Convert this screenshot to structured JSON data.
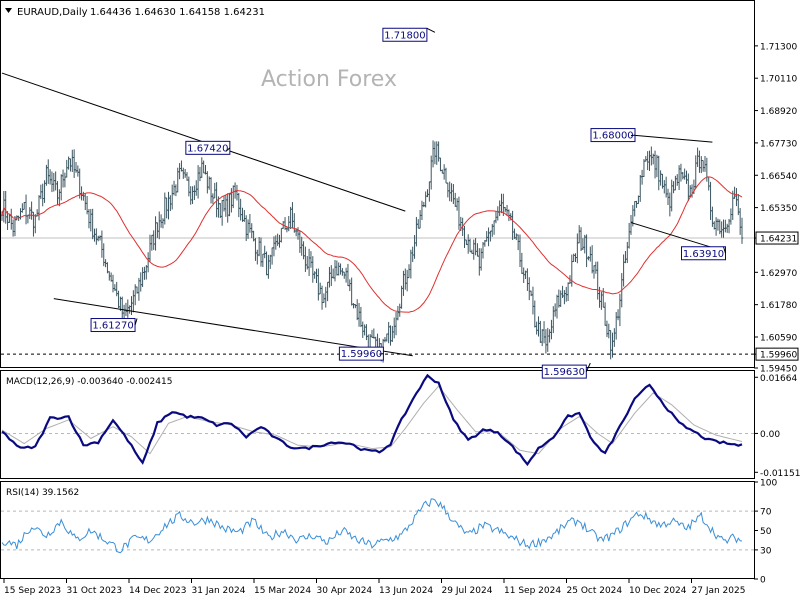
{
  "header": {
    "symbol": "EURAUD,Daily",
    "ohlc": "1.64436 1.64630 1.64158 1.64231"
  },
  "watermark": "Action Forex",
  "colors": {
    "price_bars": "#3b5560",
    "moving_average": "#e03030",
    "macd_line": "#0a0a80",
    "macd_signal": "#b0b0b0",
    "rsi_line": "#3a8fd8",
    "trendline": "#000000",
    "label_border": "#0a0a80",
    "background": "#ffffff"
  },
  "chart_data": [
    {
      "type": "ohlc",
      "panel": "price",
      "instrument": "EURAUD",
      "timeframe": "Daily",
      "ylim": [
        1.5945,
        1.7295
      ],
      "yticks": [
        "1.71300",
        "1.70110",
        "1.68920",
        "1.67730",
        "1.66540",
        "1.65350",
        "1.64231",
        "1.62970",
        "1.61780",
        "1.60590",
        "1.59960",
        "1.59450"
      ],
      "last_price": 1.64231,
      "support_line": 1.5996,
      "xticks": [
        "15 Sep 2023",
        "31 Oct 2023",
        "14 Dec 2023",
        "31 Jan 2024",
        "15 Mar 2024",
        "30 Apr 2024",
        "13 Jun 2024",
        "29 Jul 2024",
        "11 Sep 2024",
        "25 Oct 2024",
        "10 Dec 2024",
        "27 Jan 2025"
      ],
      "close_path": [
        [
          0,
          1.6545
        ],
        [
          6,
          1.646
        ],
        [
          12,
          1.653
        ],
        [
          18,
          1.649
        ],
        [
          24,
          1.665
        ],
        [
          30,
          1.658
        ],
        [
          36,
          1.672
        ],
        [
          42,
          1.662
        ],
        [
          48,
          1.648
        ],
        [
          54,
          1.638
        ],
        [
          60,
          1.625
        ],
        [
          66,
          1.613
        ],
        [
          72,
          1.621
        ],
        [
          78,
          1.633
        ],
        [
          84,
          1.648
        ],
        [
          90,
          1.656
        ],
        [
          96,
          1.665
        ],
        [
          102,
          1.66
        ],
        [
          108,
          1.668
        ],
        [
          114,
          1.658
        ],
        [
          120,
          1.652
        ],
        [
          126,
          1.659
        ],
        [
          132,
          1.647
        ],
        [
          138,
          1.639
        ],
        [
          144,
          1.631
        ],
        [
          150,
          1.643
        ],
        [
          156,
          1.65
        ],
        [
          162,
          1.638
        ],
        [
          168,
          1.628
        ],
        [
          174,
          1.62
        ],
        [
          180,
          1.632
        ],
        [
          186,
          1.628
        ],
        [
          192,
          1.615
        ],
        [
          198,
          1.605
        ],
        [
          204,
          1.6
        ],
        [
          210,
          1.608
        ],
        [
          216,
          1.623
        ],
        [
          222,
          1.638
        ],
        [
          228,
          1.655
        ],
        [
          234,
          1.675
        ],
        [
          240,
          1.665
        ],
        [
          246,
          1.652
        ],
        [
          252,
          1.642
        ],
        [
          258,
          1.632
        ],
        [
          264,
          1.646
        ],
        [
          270,
          1.654
        ],
        [
          276,
          1.645
        ],
        [
          282,
          1.63
        ],
        [
          288,
          1.612
        ],
        [
          294,
          1.602
        ],
        [
          300,
          1.618
        ],
        [
          306,
          1.625
        ],
        [
          312,
          1.642
        ],
        [
          318,
          1.637
        ],
        [
          324,
          1.618
        ],
        [
          330,
          1.602
        ],
        [
          336,
          1.63
        ],
        [
          342,
          1.655
        ],
        [
          348,
          1.673
        ],
        [
          354,
          1.669
        ],
        [
          360,
          1.655
        ],
        [
          366,
          1.665
        ],
        [
          372,
          1.659
        ],
        [
          378,
          1.674
        ],
        [
          384,
          1.65
        ],
        [
          390,
          1.646
        ],
        [
          396,
          1.658
        ],
        [
          400,
          1.6423
        ]
      ],
      "annotations": [
        {
          "text": "1.71800",
          "value": 1.718,
          "at_day": 234
        },
        {
          "text": "1.67420",
          "value": 1.6742,
          "at_day": 121
        },
        {
          "text": "1.61270",
          "value": 1.6127,
          "at_day": 73
        },
        {
          "text": "1.59960",
          "value": 1.5996,
          "at_day": 204
        },
        {
          "text": "1.68000",
          "value": 1.68,
          "at_day": 340
        },
        {
          "text": "1.63910",
          "value": 1.6391,
          "at_day": 390
        },
        {
          "text": "1.59630",
          "value": 1.5963,
          "at_day": 318
        }
      ],
      "trendlines": [
        {
          "from": [
            0,
            1.703
          ],
          "to": [
            218,
            1.6522
          ]
        },
        {
          "from": [
            28,
            1.62
          ],
          "to": [
            222,
            1.599
          ]
        },
        {
          "from": [
            338,
            1.6803
          ],
          "to": [
            384,
            1.6776
          ]
        },
        {
          "from": [
            340,
            1.648
          ],
          "to": [
            384,
            1.6388
          ]
        }
      ]
    },
    {
      "type": "line",
      "panel": "macd",
      "title": "MACD(12,26,9) -0.003640 -0.002415",
      "ylim": [
        -0.0135,
        0.0185
      ],
      "yticks": [
        "0.01664",
        "0.00",
        "-0.011515"
      ],
      "series": [
        {
          "values": [
            [
              0,
              0.0005
            ],
            [
              10,
              -0.0045
            ],
            [
              18,
              -0.004
            ],
            [
              26,
              0.0045
            ],
            [
              36,
              0.005
            ],
            [
              44,
              -0.0035
            ],
            [
              52,
              -0.0025
            ],
            [
              60,
              0.004
            ],
            [
              68,
              -0.002
            ],
            [
              76,
              -0.009
            ],
            [
              84,
              0.003
            ],
            [
              92,
              0.0065
            ],
            [
              100,
              0.005
            ],
            [
              108,
              0.0045
            ],
            [
              116,
              0.0025
            ],
            [
              124,
              0.003
            ],
            [
              132,
              -0.001
            ],
            [
              140,
              0.002
            ],
            [
              148,
              -0.0015
            ],
            [
              156,
              -0.004
            ],
            [
              164,
              -0.0045
            ],
            [
              172,
              -0.0035
            ],
            [
              180,
              -0.0025
            ],
            [
              188,
              -0.003
            ],
            [
              196,
              -0.005
            ],
            [
              204,
              -0.0055
            ],
            [
              210,
              -0.003
            ],
            [
              216,
              0.004
            ],
            [
              224,
              0.012
            ],
            [
              230,
              0.017
            ],
            [
              236,
              0.015
            ],
            [
              244,
              0.004
            ],
            [
              252,
              -0.002
            ],
            [
              260,
              0.001
            ],
            [
              268,
              0.0005
            ],
            [
              276,
              -0.004
            ],
            [
              284,
              -0.009
            ],
            [
              290,
              -0.0045
            ],
            [
              298,
              -0.001
            ],
            [
              306,
              0.005
            ],
            [
              312,
              0.006
            ],
            [
              320,
              -0.003
            ],
            [
              326,
              -0.006
            ],
            [
              334,
              0.002
            ],
            [
              342,
              0.01
            ],
            [
              350,
              0.0145
            ],
            [
              358,
              0.0085
            ],
            [
              366,
              0.003
            ],
            [
              374,
              0.0005
            ],
            [
              382,
              -0.002
            ],
            [
              392,
              -0.003
            ],
            [
              400,
              -0.0036
            ]
          ]
        },
        {
          "values": [
            [
              0,
              0.001
            ],
            [
              12,
              -0.003
            ],
            [
              24,
              0.0015
            ],
            [
              36,
              0.004
            ],
            [
              48,
              -0.0015
            ],
            [
              60,
              0.002
            ],
            [
              70,
              -0.001
            ],
            [
              80,
              -0.006
            ],
            [
              90,
              0.003
            ],
            [
              100,
              0.005
            ],
            [
              112,
              0.0035
            ],
            [
              124,
              0.0025
            ],
            [
              136,
              0.0005
            ],
            [
              148,
              -0.0005
            ],
            [
              160,
              -0.0035
            ],
            [
              172,
              -0.004
            ],
            [
              186,
              -0.0028
            ],
            [
              200,
              -0.0045
            ],
            [
              210,
              -0.004
            ],
            [
              218,
              0.0015
            ],
            [
              228,
              0.009
            ],
            [
              236,
              0.014
            ],
            [
              246,
              0.007
            ],
            [
              256,
              0.0005
            ],
            [
              268,
              0.0005
            ],
            [
              280,
              -0.005
            ],
            [
              290,
              -0.006
            ],
            [
              302,
              0.0015
            ],
            [
              312,
              0.005
            ],
            [
              322,
              0.0
            ],
            [
              330,
              -0.003
            ],
            [
              342,
              0.006
            ],
            [
              352,
              0.012
            ],
            [
              362,
              0.0085
            ],
            [
              374,
              0.0025
            ],
            [
              386,
              -0.0005
            ],
            [
              400,
              -0.0024
            ]
          ]
        }
      ]
    },
    {
      "type": "line",
      "panel": "rsi",
      "title": "RSI(14) 39.1562",
      "ylim": [
        0,
        100
      ],
      "yticks": [
        "100",
        "70",
        "50",
        "30",
        "0"
      ],
      "reference_levels": [
        70,
        30
      ],
      "series": [
        {
          "values": [
            [
              0,
              40
            ],
            [
              8,
              35
            ],
            [
              16,
              55
            ],
            [
              24,
              45
            ],
            [
              32,
              60
            ],
            [
              40,
              40
            ],
            [
              48,
              50
            ],
            [
              56,
              40
            ],
            [
              64,
              30
            ],
            [
              72,
              42
            ],
            [
              80,
              40
            ],
            [
              88,
              55
            ],
            [
              96,
              65
            ],
            [
              104,
              58
            ],
            [
              112,
              62
            ],
            [
              120,
              52
            ],
            [
              128,
              48
            ],
            [
              136,
              60
            ],
            [
              144,
              42
            ],
            [
              152,
              50
            ],
            [
              160,
              40
            ],
            [
              168,
              45
            ],
            [
              176,
              38
            ],
            [
              184,
              50
            ],
            [
              192,
              40
            ],
            [
              200,
              35
            ],
            [
              208,
              40
            ],
            [
              216,
              45
            ],
            [
              222,
              60
            ],
            [
              228,
              75
            ],
            [
              234,
              82
            ],
            [
              240,
              70
            ],
            [
              246,
              55
            ],
            [
              252,
              45
            ],
            [
              260,
              55
            ],
            [
              268,
              50
            ],
            [
              276,
              42
            ],
            [
              284,
              35
            ],
            [
              290,
              38
            ],
            [
              298,
              45
            ],
            [
              306,
              58
            ],
            [
              312,
              60
            ],
            [
              318,
              48
            ],
            [
              324,
              40
            ],
            [
              330,
              45
            ],
            [
              338,
              58
            ],
            [
              344,
              68
            ],
            [
              350,
              62
            ],
            [
              356,
              55
            ],
            [
              362,
              60
            ],
            [
              370,
              52
            ],
            [
              378,
              65
            ],
            [
              384,
              50
            ],
            [
              390,
              38
            ],
            [
              396,
              43
            ],
            [
              400,
              39.16
            ]
          ]
        }
      ]
    }
  ]
}
